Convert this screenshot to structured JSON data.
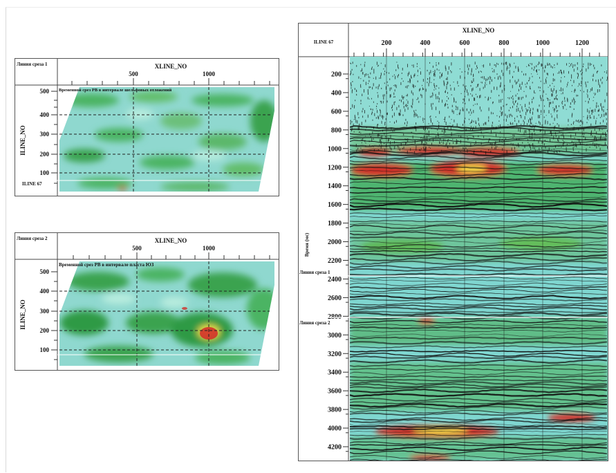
{
  "slice1": {
    "corner": "Линия среза 1",
    "x_axis_label": "XLINE_NO",
    "y_axis_label": "ILINE_NO",
    "x_ticks": [
      "500",
      "1000"
    ],
    "y_ticks": [
      "500",
      "400",
      "300",
      "200",
      "100"
    ],
    "caption": "Временной срез РВ в интервале шельфовых отложений",
    "line_marker": "ILINE 67"
  },
  "slice2": {
    "corner": "Линия среза 2",
    "x_axis_label": "XLINE_NO",
    "y_axis_label": "ILINE_NO",
    "x_ticks": [
      "500",
      "1000"
    ],
    "y_ticks": [
      "500",
      "400",
      "300",
      "200",
      "100"
    ],
    "caption": "Временной срез РВ в интервале пласта ЮЗ"
  },
  "section": {
    "corner": "ILINE 67",
    "x_axis_label": "XLINE_NO",
    "x_ticks": [
      "200",
      "400",
      "600",
      "800",
      "1000",
      "1200"
    ],
    "y_axis_label": "Время (мс)",
    "y_ticks": [
      "200",
      "400",
      "600",
      "800",
      "1000",
      "1200",
      "1400",
      "1600",
      "1800",
      "2000",
      "2200",
      "2400",
      "2600",
      "2800",
      "3000",
      "3200",
      "3400",
      "3600",
      "3800",
      "4000",
      "4200"
    ],
    "marker1": "Линия среза 1",
    "marker2": "Линия среза 2"
  },
  "colors": {
    "background_cyan": "#7fd6d0",
    "green": "#3fa84f",
    "light_green": "#8fcf6a",
    "red": "#d2322a",
    "yellow": "#f2e14a",
    "trace_black": "#111111"
  }
}
